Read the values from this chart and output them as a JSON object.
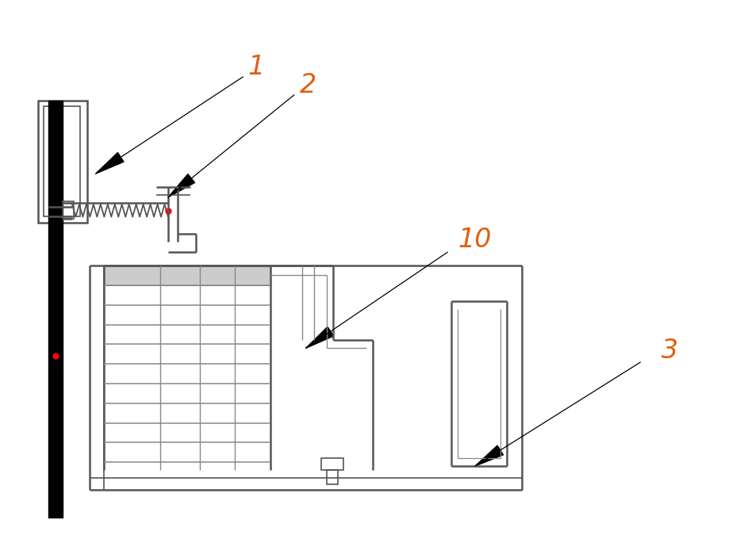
{
  "bg_color": "#ffffff",
  "line_color": "#555555",
  "line_color2": "#888888",
  "black": "#000000",
  "red": "#ff0000",
  "label_color_orange": "#e06010",
  "figsize": [
    9.29,
    6.99
  ],
  "dpi": 100
}
